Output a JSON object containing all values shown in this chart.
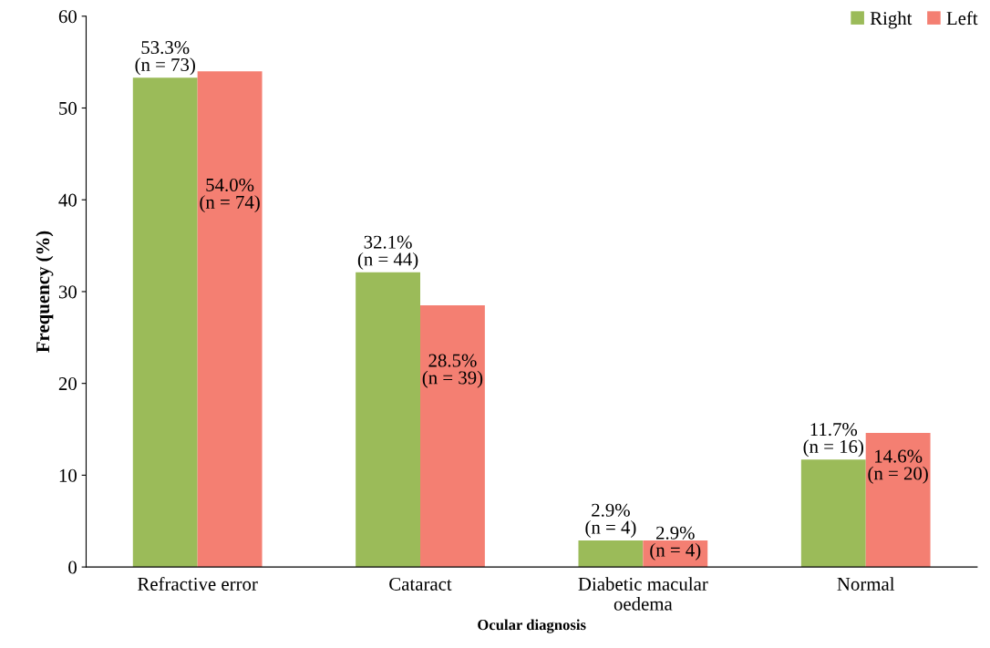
{
  "chart_data": {
    "type": "bar",
    "xlabel": "Ocular diagnosis",
    "ylabel": "Frequency (%)",
    "categories": [
      "Refractive error",
      "Cataract",
      "Diabetic macular\noedema",
      "Normal"
    ],
    "series": [
      {
        "name": "Right",
        "color": "#9bbb59",
        "values": [
          53.3,
          32.1,
          2.9,
          11.7
        ],
        "value_labels": [
          "53.3%\n(n = 73)",
          "32.1%\n(n = 44)",
          "2.9%\n(n = 4)",
          "11.7%\n(n = 16)"
        ]
      },
      {
        "name": "Left",
        "color": "#f47f72",
        "values": [
          54.0,
          28.5,
          2.9,
          14.6
        ],
        "value_labels": [
          "54.0%\n(n = 74)",
          "28.5%\n(n = 39)",
          "2.9%\n(n = 4)",
          "14.6%\n(n = 20)"
        ]
      }
    ],
    "ylim": [
      0,
      60
    ],
    "yticks": [
      0,
      10,
      20,
      30,
      40,
      50,
      60
    ],
    "grid": false,
    "legend": "top right"
  }
}
